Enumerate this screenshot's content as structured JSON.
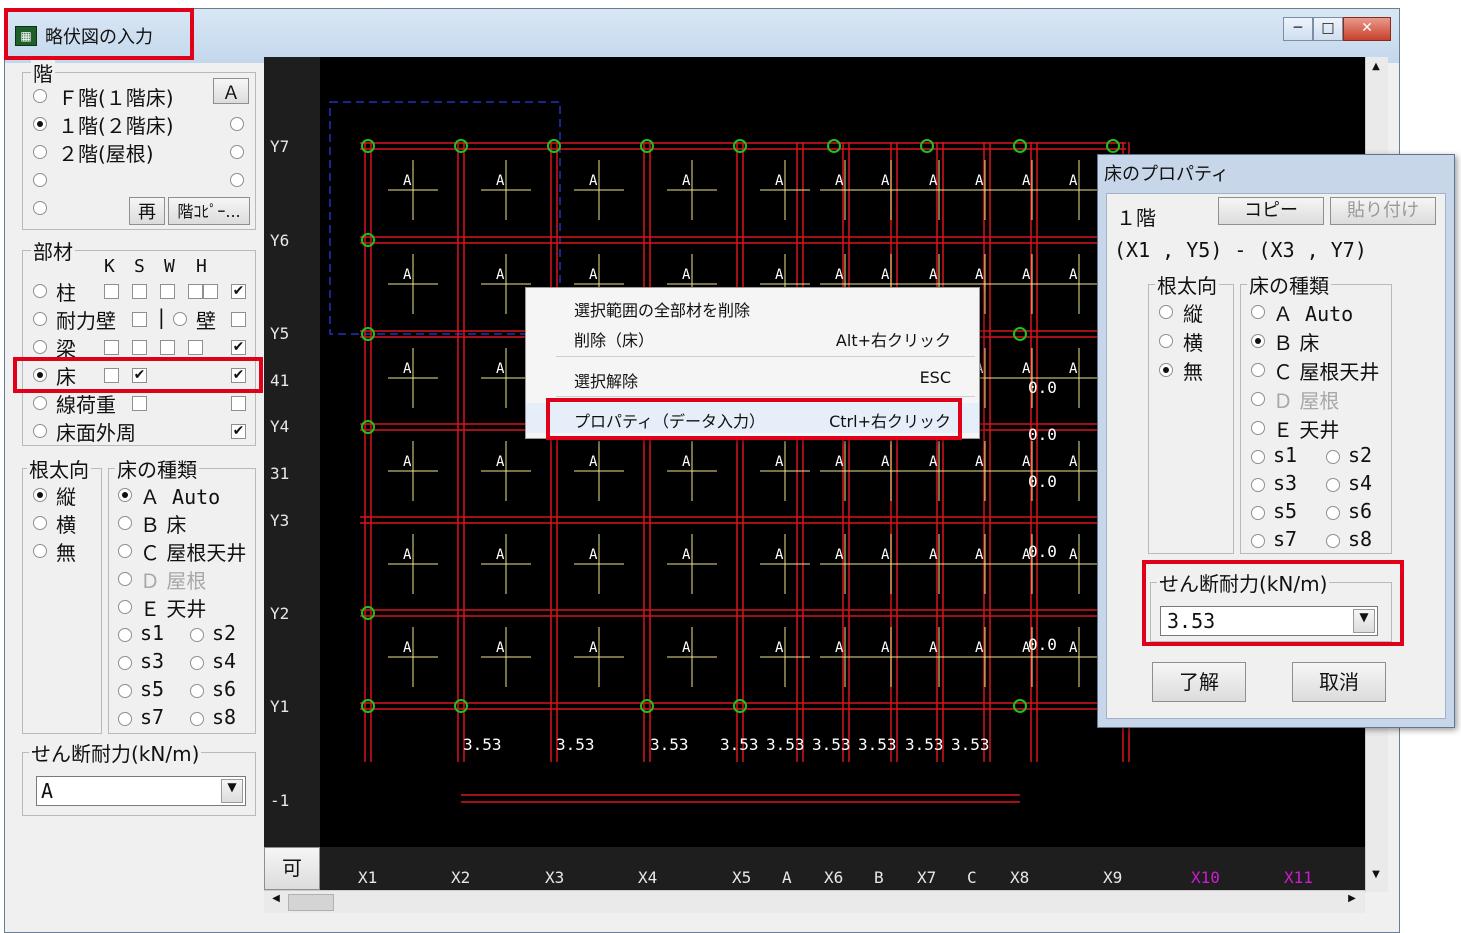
{
  "window": {
    "title": "略伏図の入力",
    "controls": [
      "─",
      "□",
      "✕"
    ]
  },
  "floor_panel": {
    "group_label": "階",
    "options": [
      {
        "label": "Ｆ階(１階床)",
        "selected": false
      },
      {
        "label": "１階(２階床)",
        "selected": true
      },
      {
        "label": "２階(屋根)",
        "selected": false
      },
      {
        "label": "",
        "selected": false
      },
      {
        "label": "",
        "selected": false
      }
    ],
    "a_button": "Ａ",
    "redo_button": "再",
    "copy_button": "階ｺﾋﾟｰ..."
  },
  "member_panel": {
    "group_label": "部材",
    "column_headers": [
      "K",
      "S",
      "W",
      "H"
    ],
    "rows": [
      {
        "label": "柱",
        "selected": false
      },
      {
        "label": "耐力壁",
        "selected": false
      },
      {
        "label": "梁",
        "selected": false
      },
      {
        "label": "床",
        "selected": true
      },
      {
        "label": "線荷重",
        "selected": false
      },
      {
        "label": "床面外周",
        "selected": false
      }
    ],
    "wall_separator": "|",
    "wall_label": "壁"
  },
  "joist_panel": {
    "group_label": "根太向",
    "options": [
      {
        "label": "縦",
        "selected": true
      },
      {
        "label": "横",
        "selected": false
      },
      {
        "label": "無",
        "selected": false
      }
    ]
  },
  "floor_type_panel": {
    "group_label": "床の種類",
    "options": [
      {
        "label": "Ａ Auto",
        "selected": true
      },
      {
        "label": "Ｂ 床",
        "selected": false
      },
      {
        "label": "Ｃ 屋根天井",
        "selected": false
      },
      {
        "label": "Ｄ 屋根",
        "selected": false,
        "disabled": true
      },
      {
        "label": "Ｅ 天井",
        "selected": false
      }
    ],
    "s_options": [
      "s1",
      "s2",
      "s3",
      "s4",
      "s5",
      "s6",
      "s7",
      "s8"
    ]
  },
  "shear_panel": {
    "group_label": "せん断耐力(kN/m)",
    "value": "A"
  },
  "left_ruler": [
    "Y7",
    "Y6",
    "Y5",
    "41",
    "Y4",
    "31",
    "Y3",
    "Y2",
    "Y1",
    "-1"
  ],
  "bottom_ruler": {
    "corner": "可",
    "labels": [
      "X1",
      "X2",
      "X3",
      "X4",
      "X5",
      "A",
      "X6",
      "B",
      "X7",
      "C",
      "X8",
      "X9",
      "X10",
      "X11"
    ]
  },
  "canvas": {
    "cell_label": "A",
    "right_values": [
      "0.0",
      "0.0",
      "0.0",
      "0.0",
      "0.0"
    ],
    "bottom_values": [
      "3.53",
      "3.53",
      "3.53",
      "3.53",
      "3.53",
      "3.53",
      "3.53",
      "3.53",
      "3.53"
    ]
  },
  "context_menu": {
    "items": [
      {
        "label": "選択範囲の全部材を削除",
        "shortcut": ""
      },
      {
        "label": "削除（床）",
        "shortcut": "Alt+右クリック"
      },
      {
        "label": "選択解除",
        "shortcut": "ESC"
      },
      {
        "label": "プロパティ（データ入力）",
        "shortcut": "Ctrl+右クリック"
      }
    ]
  },
  "property_dialog": {
    "title": "床のプロパティ",
    "floor_label": "１階",
    "copy_button": "コピー",
    "paste_button": "貼り付け",
    "range_text": "(X1 , Y5) - (X3 , Y7)",
    "joist_label": "根太向",
    "joist_options": [
      {
        "label": "縦",
        "selected": false
      },
      {
        "label": "横",
        "selected": false
      },
      {
        "label": "無",
        "selected": true
      }
    ],
    "type_label": "床の種類",
    "type_options": [
      {
        "label": "Ａ Auto",
        "selected": false
      },
      {
        "label": "Ｂ 床",
        "selected": true
      },
      {
        "label": "Ｃ 屋根天井",
        "selected": false
      },
      {
        "label": "Ｄ 屋根",
        "selected": false,
        "disabled": true
      },
      {
        "label": "Ｅ 天井",
        "selected": false
      }
    ],
    "s_options": [
      "s1",
      "s2",
      "s3",
      "s4",
      "s5",
      "s6",
      "s7",
      "s8"
    ],
    "shear_label": "せん断耐力(kN/m)",
    "shear_value": "3.53",
    "ok_button": "了解",
    "cancel_button": "取消"
  },
  "colors": {
    "member_red": "#d8141c",
    "node_green": "#20c020",
    "annotation_red": "#e0001a",
    "canvas_bg": "#000000"
  }
}
